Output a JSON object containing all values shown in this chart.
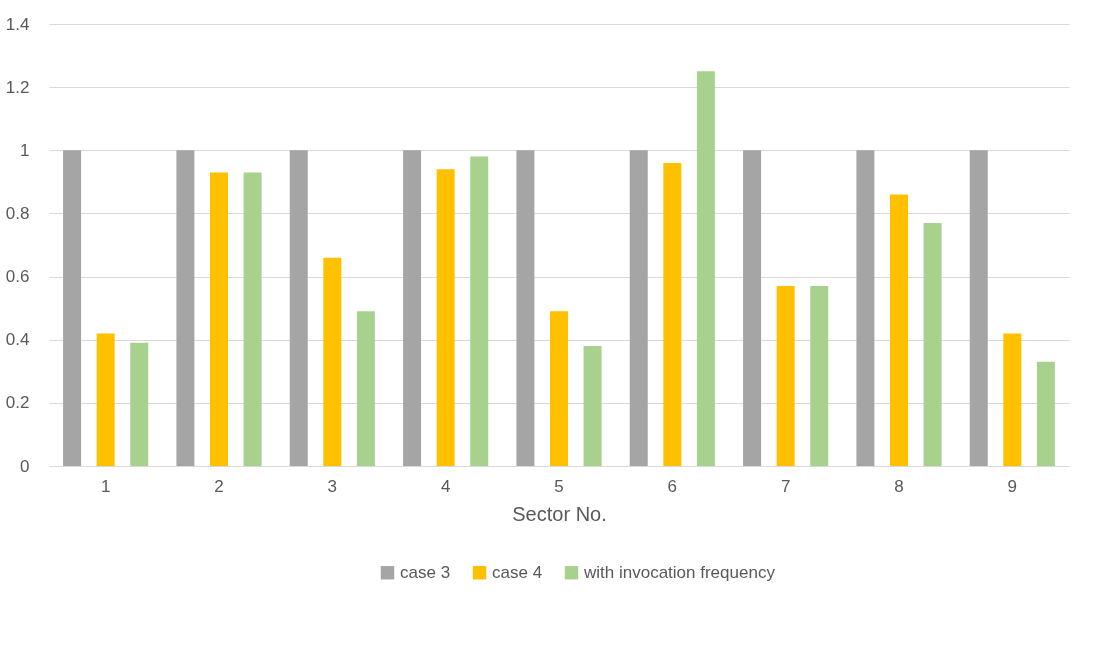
{
  "chart_data": {
    "type": "bar",
    "xlabel": "Sector No.",
    "categories": [
      "1",
      "2",
      "3",
      "4",
      "5",
      "6",
      "7",
      "8",
      "9"
    ],
    "series": [
      {
        "name": "case 3",
        "color": "#a5a5a5",
        "values": [
          1,
          1,
          1,
          1,
          1,
          1,
          1,
          1,
          1
        ]
      },
      {
        "name": "case 4",
        "color": "#ffc000",
        "values": [
          0.42,
          0.93,
          0.66,
          0.94,
          0.49,
          0.96,
          0.57,
          0.86,
          0.42
        ]
      },
      {
        "name": "with invocation frequency",
        "color": "#a9d18e",
        "values": [
          0.39,
          0.93,
          0.49,
          0.98,
          0.38,
          1.25,
          0.57,
          0.77,
          0.33
        ]
      }
    ],
    "ylim": [
      0,
      1.4
    ],
    "yticks": [
      0,
      0.2,
      0.4,
      0.6,
      0.8,
      1,
      1.2,
      1.4
    ],
    "grid": "y",
    "legend": "bottom"
  }
}
